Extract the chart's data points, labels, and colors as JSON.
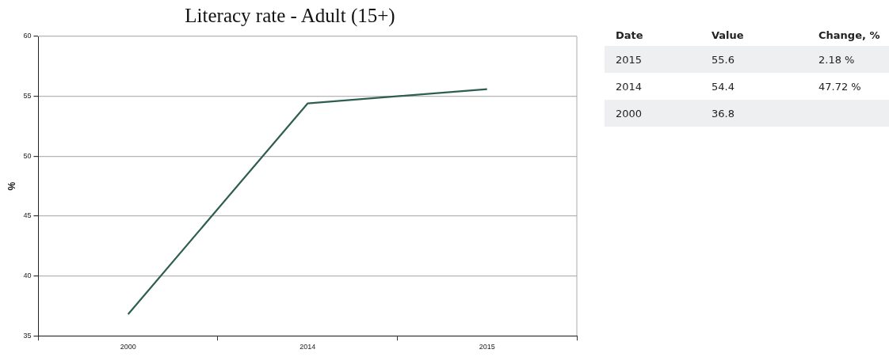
{
  "chart_data": {
    "type": "line",
    "title": "Literacy rate - Adult (15+)",
    "ylabel": "%",
    "categories": [
      "2000",
      "2014",
      "2015"
    ],
    "series": [
      {
        "color": "#2e5e52",
        "values": [
          36.8,
          54.4,
          55.6
        ]
      }
    ],
    "ylim": [
      35,
      60
    ],
    "yticks": [
      35,
      40,
      45,
      50,
      55,
      60
    ],
    "grid": "y",
    "legend": false,
    "marker": "none",
    "line_style": "solid",
    "annotations": [
      "Date",
      "Value",
      "Change, %",
      "2015",
      "55.6",
      "2.18 %",
      "2014",
      "54.4",
      "47.72 %",
      "2000",
      "36.8"
    ]
  }
}
